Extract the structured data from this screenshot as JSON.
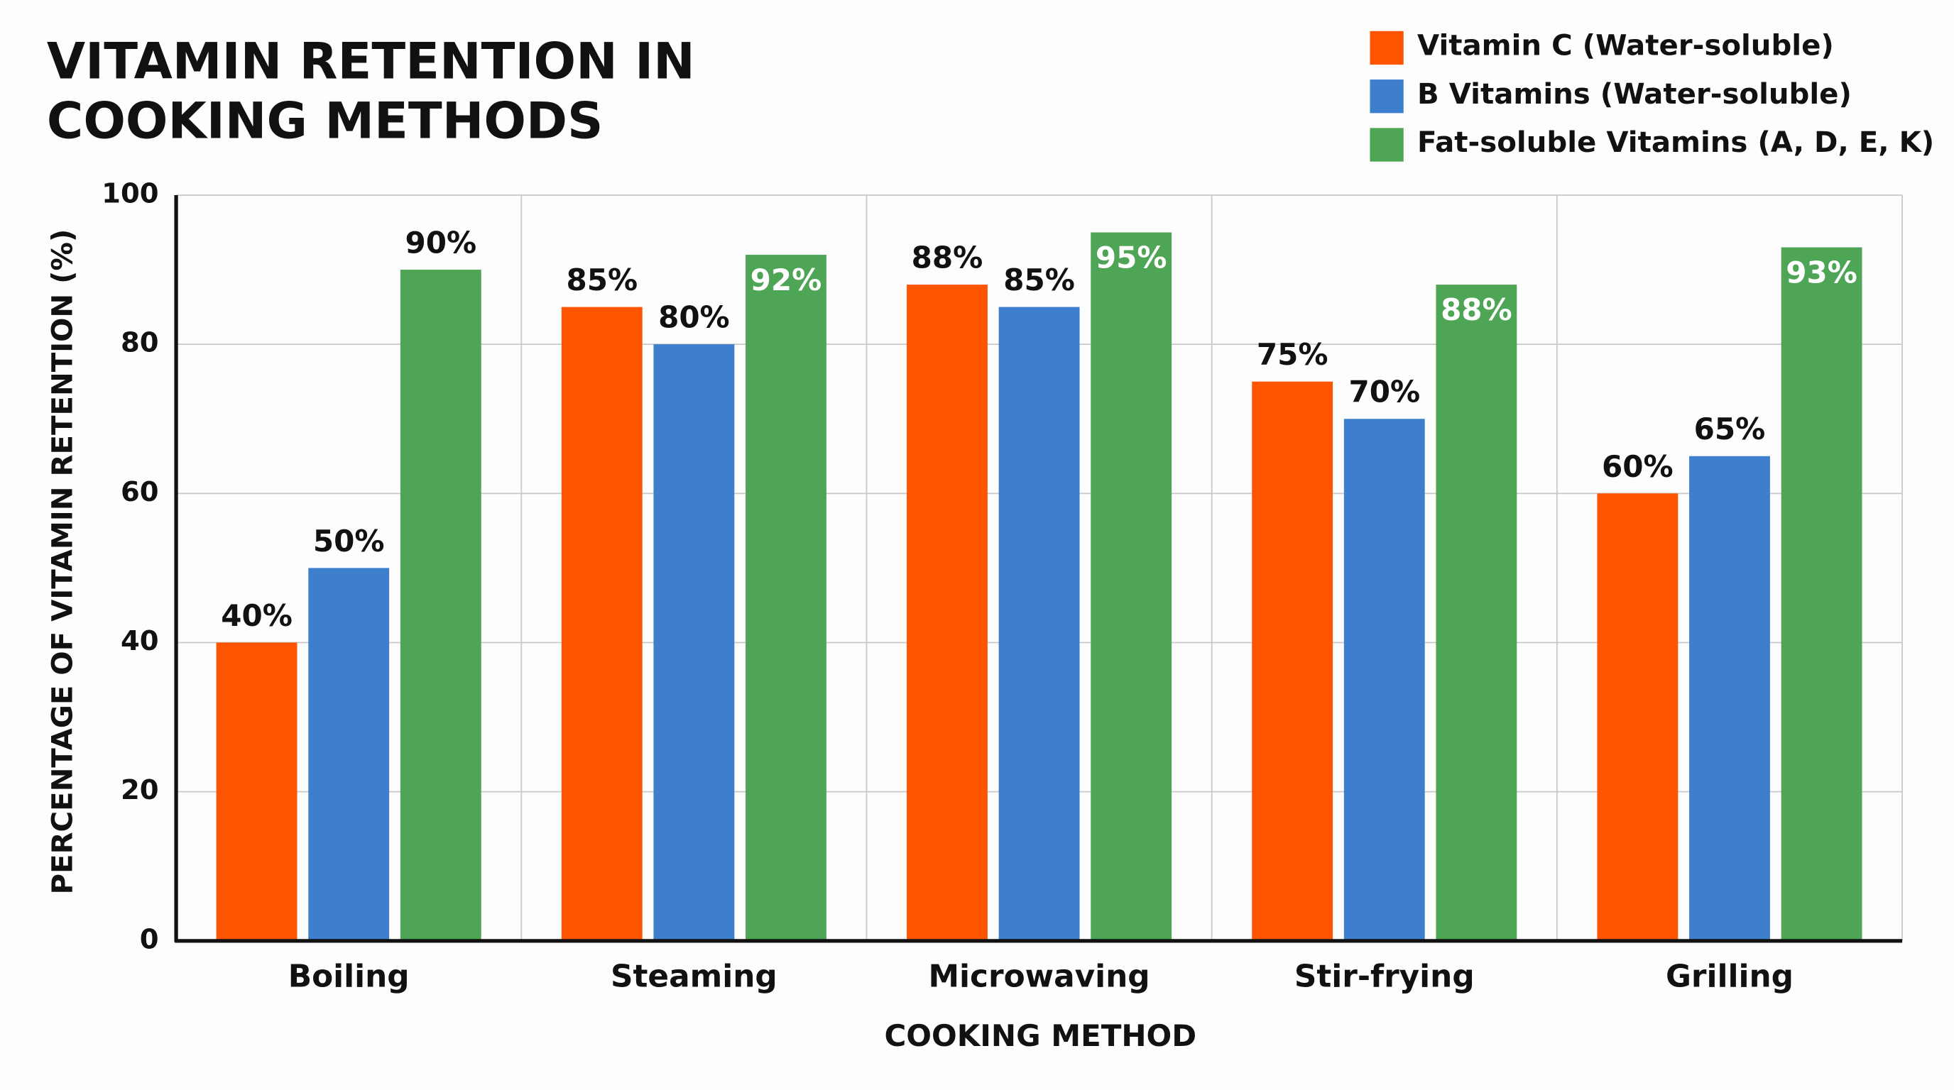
{
  "chart_data": {
    "type": "bar",
    "title": "VITAMIN RETENTION IN COOKING METHODS",
    "x_label": "COOKING METHOD",
    "y_label": "PERCENTAGE OF VITAMIN RETENTION (%)",
    "categories": [
      "Boiling",
      "Steaming",
      "Microwaving",
      "Stir-frying",
      "Grilling"
    ],
    "series": [
      {
        "name": "Vitamin C (Water-soluble)",
        "color": "#ff5500",
        "values": [
          40,
          85,
          88,
          75,
          60
        ],
        "value_labels": [
          "40%",
          "85%",
          "88%",
          "75%",
          "60%"
        ]
      },
      {
        "name": "B Vitamins (Water-soluble)",
        "color": "#3d7fcc",
        "values": [
          50,
          80,
          85,
          70,
          65
        ],
        "value_labels": [
          "50%",
          "80%",
          "85%",
          "70%",
          "65%"
        ]
      },
      {
        "name": "Fat-soluble Vitamins (A, D, E, K)",
        "color": "#4ea555",
        "values": [
          90,
          92,
          95,
          88,
          93
        ],
        "value_labels": [
          "90%",
          "92%",
          "95%",
          "88%",
          "93%"
        ]
      }
    ],
    "ylim": [
      0,
      100
    ],
    "yticks": [
      0,
      20,
      40,
      60,
      80,
      100
    ],
    "grid": true,
    "legend": "top-right"
  }
}
